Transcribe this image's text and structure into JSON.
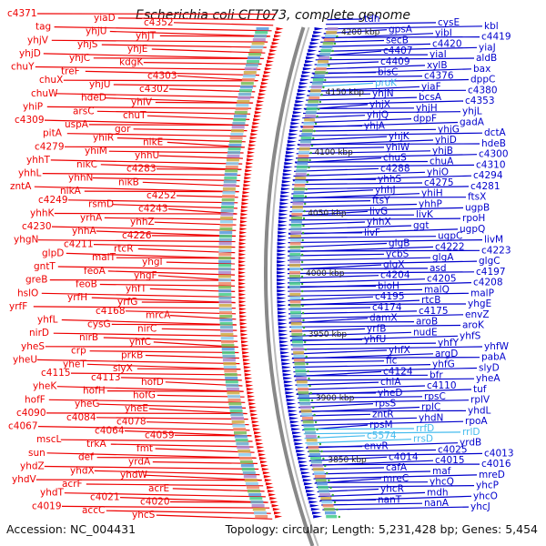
{
  "title": "Escherichia coli CFT073, complete genome",
  "footer": {
    "accession": "Accession: NC_004431",
    "summary": "Topology: circular; Length: 5,231,428 bp; Genes: 5,454"
  },
  "colors": {
    "reverse_strand": "#ee0000",
    "forward_strand": "#0000cc",
    "rna": "#44bbee",
    "backbone": "#888888"
  },
  "kbp_marks": [
    "4200 kbp",
    "4150 kbp",
    "4100 kbp",
    "4050 kbp",
    "4000 kbp",
    "3950 kbp",
    "3900 kbp",
    "3850 kbp"
  ],
  "left_labels": [
    {
      "text": "c4371"
    },
    {
      "text": "yiaD"
    },
    {
      "text": "c4352"
    },
    {
      "text": "tag"
    },
    {
      "text": "yhjU"
    },
    {
      "text": "yhjT"
    },
    {
      "text": "yhjV"
    },
    {
      "text": "yhjS"
    },
    {
      "text": "yhjE"
    },
    {
      "text": "yhjD"
    },
    {
      "text": "yhjC"
    },
    {
      "text": "kdgK"
    },
    {
      "text": "chuY"
    },
    {
      "text": "treF"
    },
    {
      "text": "c4303"
    },
    {
      "text": "chuX"
    },
    {
      "text": "yhjU"
    },
    {
      "text": "c4302"
    },
    {
      "text": "chuW"
    },
    {
      "text": "hdeD"
    },
    {
      "text": "yhiV"
    },
    {
      "text": "yhiP"
    },
    {
      "text": "arsC"
    },
    {
      "text": "chuT"
    },
    {
      "text": "c4309"
    },
    {
      "text": "uspA"
    },
    {
      "text": "gor"
    },
    {
      "text": "pitA"
    },
    {
      "text": "yhiR"
    },
    {
      "text": "nikE"
    },
    {
      "text": "c4279"
    },
    {
      "text": "yhiM"
    },
    {
      "text": "yhhU"
    },
    {
      "text": "yhhT"
    },
    {
      "text": "nikC"
    },
    {
      "text": "c4283"
    },
    {
      "text": "yhhL"
    },
    {
      "text": "yhhN"
    },
    {
      "text": "nikB"
    },
    {
      "text": "zntA"
    },
    {
      "text": "nikA"
    },
    {
      "text": "c4252"
    },
    {
      "text": "c4249"
    },
    {
      "text": "rsmD"
    },
    {
      "text": "c4243"
    },
    {
      "text": "yhhK"
    },
    {
      "text": "yrhA"
    },
    {
      "text": "yhhZ"
    },
    {
      "text": "c4230"
    },
    {
      "text": "yhhA"
    },
    {
      "text": "c4226"
    },
    {
      "text": "yhgN"
    },
    {
      "text": "c4211"
    },
    {
      "text": "rtcR"
    },
    {
      "text": "glpD"
    },
    {
      "text": "malT"
    },
    {
      "text": "yhgI"
    },
    {
      "text": "gntT"
    },
    {
      "text": "feoA"
    },
    {
      "text": "yhgF"
    },
    {
      "text": "greB"
    },
    {
      "text": "feoB"
    },
    {
      "text": "yhfT"
    },
    {
      "text": "hslO"
    },
    {
      "text": "yrfH"
    },
    {
      "text": "yrfG"
    },
    {
      "text": "yrfF"
    },
    {
      "text": "c4168"
    },
    {
      "text": "mrcA"
    },
    {
      "text": "yhfL"
    },
    {
      "text": "cysG"
    },
    {
      "text": "nirC"
    },
    {
      "text": "nirD"
    },
    {
      "text": "nirB"
    },
    {
      "text": "yhfC"
    },
    {
      "text": "yheS"
    },
    {
      "text": "crp"
    },
    {
      "text": "prkB"
    },
    {
      "text": "yheU"
    },
    {
      "text": "yheT"
    },
    {
      "text": "slyX"
    },
    {
      "text": "c4115"
    },
    {
      "text": "c4113"
    },
    {
      "text": "hofD"
    },
    {
      "text": "yheK"
    },
    {
      "text": "hofH"
    },
    {
      "text": "hofG"
    },
    {
      "text": "hofF"
    },
    {
      "text": "yheG"
    },
    {
      "text": "yheE"
    },
    {
      "text": "c4090"
    },
    {
      "text": "c4084"
    },
    {
      "text": "c4078"
    },
    {
      "text": "c4067"
    },
    {
      "text": "c4064"
    },
    {
      "text": "c4059"
    },
    {
      "text": "mscL"
    },
    {
      "text": "trkA"
    },
    {
      "text": "fmt"
    },
    {
      "text": "sun"
    },
    {
      "text": "def"
    },
    {
      "text": "yrdA"
    },
    {
      "text": "yhdZ"
    },
    {
      "text": "yhdX"
    },
    {
      "text": "yhdW"
    },
    {
      "text": "yhdV"
    },
    {
      "text": "acrF"
    },
    {
      "text": "acrE"
    },
    {
      "text": "yhdT"
    },
    {
      "text": "c4021"
    },
    {
      "text": "c4020"
    },
    {
      "text": "c4019"
    },
    {
      "text": "accC"
    },
    {
      "text": "yhcS"
    }
  ],
  "right_labels": [
    {
      "text": "tdh"
    },
    {
      "text": "cysE"
    },
    {
      "text": "kbl"
    },
    {
      "text": "gpsA"
    },
    {
      "text": "yibI"
    },
    {
      "text": "c4419"
    },
    {
      "text": "secB"
    },
    {
      "text": "c4420"
    },
    {
      "text": "yiaJ"
    },
    {
      "text": "c4407"
    },
    {
      "text": "yiaI"
    },
    {
      "text": "aldB"
    },
    {
      "text": "c4409"
    },
    {
      "text": "xylB"
    },
    {
      "text": "bax"
    },
    {
      "text": "bisC"
    },
    {
      "text": "c4376"
    },
    {
      "text": "dppC"
    },
    {
      "text": "proK"
    },
    {
      "text": "yiaF"
    },
    {
      "text": "c4380"
    },
    {
      "text": "yhjN"
    },
    {
      "text": "bcsA"
    },
    {
      "text": "c4353"
    },
    {
      "text": "yhjX"
    },
    {
      "text": "yhjH"
    },
    {
      "text": "yhjL"
    },
    {
      "text": "yhjQ"
    },
    {
      "text": "dppF"
    },
    {
      "text": "gadA"
    },
    {
      "text": "yhjA"
    },
    {
      "text": "yhjG"
    },
    {
      "text": "dctA"
    },
    {
      "text": "yhjK"
    },
    {
      "text": "yhiD"
    },
    {
      "text": "hdeB"
    },
    {
      "text": "yhiW"
    },
    {
      "text": "yhjB"
    },
    {
      "text": "c4300"
    },
    {
      "text": "chuS"
    },
    {
      "text": "chuA"
    },
    {
      "text": "c4310"
    },
    {
      "text": "c4288"
    },
    {
      "text": "yhiO"
    },
    {
      "text": "c4294"
    },
    {
      "text": "yhhS"
    },
    {
      "text": "c4275"
    },
    {
      "text": "c4281"
    },
    {
      "text": "yhhJ"
    },
    {
      "text": "yhiH"
    },
    {
      "text": "ftsX"
    },
    {
      "text": "ftsY"
    },
    {
      "text": "yhhP"
    },
    {
      "text": "ugpB"
    },
    {
      "text": "livG"
    },
    {
      "text": "livK"
    },
    {
      "text": "rpoH"
    },
    {
      "text": "yhhX"
    },
    {
      "text": "ggt"
    },
    {
      "text": "ugpQ"
    },
    {
      "text": "livF"
    },
    {
      "text": "ugpC"
    },
    {
      "text": "livM"
    },
    {
      "text": "glgB"
    },
    {
      "text": "c4222"
    },
    {
      "text": "c4223"
    },
    {
      "text": "ycbS"
    },
    {
      "text": "glgA"
    },
    {
      "text": "glgC"
    },
    {
      "text": "glgX"
    },
    {
      "text": "asd"
    },
    {
      "text": "c4197"
    },
    {
      "text": "c4204"
    },
    {
      "text": "c4205"
    },
    {
      "text": "c4208"
    },
    {
      "text": "bioH"
    },
    {
      "text": "malQ"
    },
    {
      "text": "malP"
    },
    {
      "text": "c4195"
    },
    {
      "text": "rtcB"
    },
    {
      "text": "yhgE"
    },
    {
      "text": "c4174"
    },
    {
      "text": "c4175"
    },
    {
      "text": "envZ"
    },
    {
      "text": "damX"
    },
    {
      "text": "aroB"
    },
    {
      "text": "aroK"
    },
    {
      "text": "yrfB"
    },
    {
      "text": "nudE"
    },
    {
      "text": "yhfS"
    },
    {
      "text": "yhfU"
    },
    {
      "text": "yhfY"
    },
    {
      "text": "yhfW"
    },
    {
      "text": "yhfX"
    },
    {
      "text": "argD"
    },
    {
      "text": "pabA"
    },
    {
      "text": "fic"
    },
    {
      "text": "yhfG"
    },
    {
      "text": "slyD"
    },
    {
      "text": "c4124"
    },
    {
      "text": "bfr"
    },
    {
      "text": "yheA"
    },
    {
      "text": "chiA"
    },
    {
      "text": "c4110"
    },
    {
      "text": "tuf"
    },
    {
      "text": "yheD"
    },
    {
      "text": "rpsC"
    },
    {
      "text": "rplV"
    },
    {
      "text": "rpsS"
    },
    {
      "text": "rplC"
    },
    {
      "text": "yhdL"
    },
    {
      "text": "zntR"
    },
    {
      "text": "yhdN"
    },
    {
      "text": "rpoA"
    },
    {
      "text": "rpsM"
    },
    {
      "text": "rrfD"
    },
    {
      "text": "rrlD"
    },
    {
      "text": "c5574"
    },
    {
      "text": "rrsD"
    },
    {
      "text": "yrdB"
    },
    {
      "text": "envR"
    },
    {
      "text": "c4025"
    },
    {
      "text": "c4013"
    },
    {
      "text": "c4014"
    },
    {
      "text": "c4015"
    },
    {
      "text": "c4016"
    },
    {
      "text": "cafA"
    },
    {
      "text": "maf"
    },
    {
      "text": "mreD"
    },
    {
      "text": "mreC"
    },
    {
      "text": "yhcQ"
    },
    {
      "text": "yhcP"
    },
    {
      "text": "yhcR"
    },
    {
      "text": "mdh"
    },
    {
      "text": "yhcO"
    },
    {
      "text": "nanT"
    },
    {
      "text": "nanA"
    },
    {
      "text": "yhcJ"
    }
  ]
}
